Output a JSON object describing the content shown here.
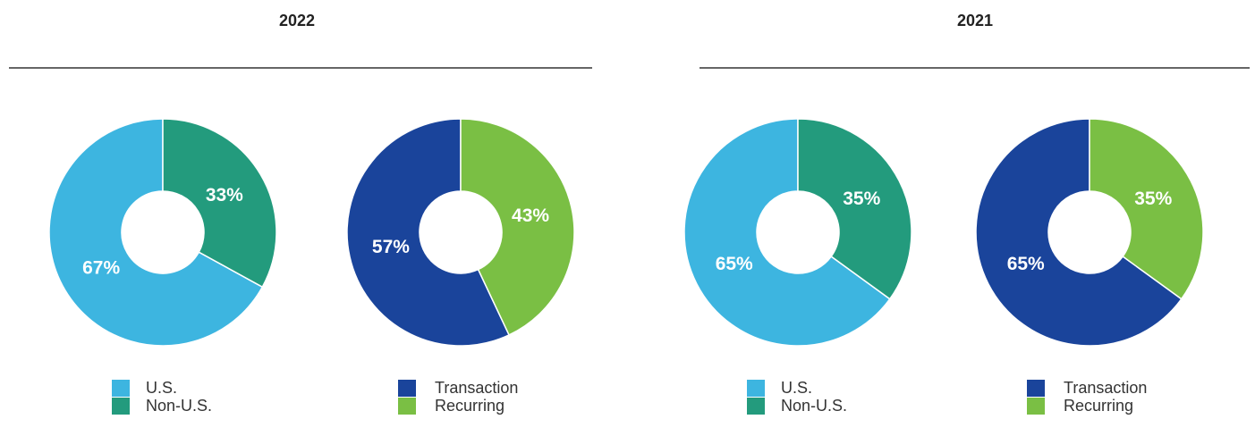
{
  "groups": [
    {
      "title": "2022"
    },
    {
      "title": "2021"
    }
  ],
  "chart_data": [
    {
      "type": "donut",
      "categories": [
        "U.S.",
        "Non-U.S."
      ],
      "values": [
        67,
        33
      ],
      "value_labels": [
        "67%",
        "33%"
      ],
      "colors": [
        "#3db5e0",
        "#239b7d"
      ]
    },
    {
      "type": "donut",
      "categories": [
        "Transaction",
        "Recurring"
      ],
      "values": [
        57,
        43
      ],
      "value_labels": [
        "57%",
        "43%"
      ],
      "colors": [
        "#1a449b",
        "#7abf44"
      ]
    },
    {
      "type": "donut",
      "categories": [
        "U.S.",
        "Non-U.S."
      ],
      "values": [
        65,
        35
      ],
      "value_labels": [
        "65%",
        "35%"
      ],
      "colors": [
        "#3db5e0",
        "#239b7d"
      ]
    },
    {
      "type": "donut",
      "categories": [
        "Transaction",
        "Recurring"
      ],
      "values": [
        65,
        35
      ],
      "value_labels": [
        "65%",
        "35%"
      ],
      "colors": [
        "#1a449b",
        "#7abf44"
      ]
    }
  ]
}
